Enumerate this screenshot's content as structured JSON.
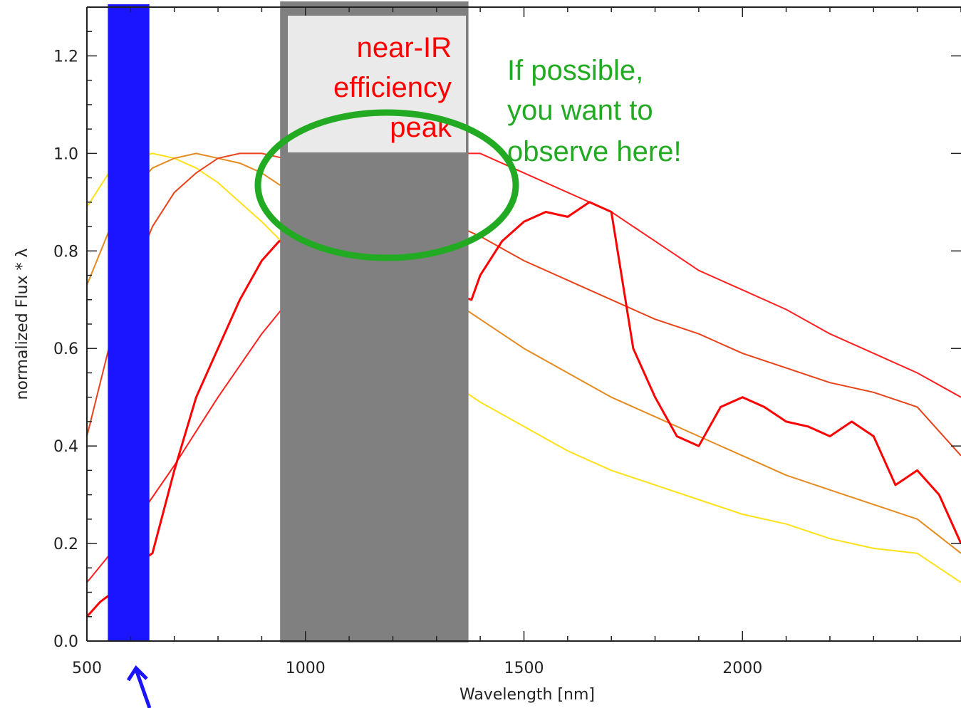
{
  "chart_data": {
    "type": "line",
    "title": "",
    "xlabel": "Wavelength [nm]",
    "ylabel": "normalized Flux * λ",
    "xlim": [
      500,
      2500
    ],
    "ylim": [
      0.0,
      1.3
    ],
    "x_ticks": [
      500,
      1000,
      1500,
      2000
    ],
    "x_tick_labels": [
      "500",
      "1000",
      "1500",
      "2000"
    ],
    "y_ticks": [
      0.0,
      0.2,
      0.4,
      0.6,
      0.8,
      1.0,
      1.2
    ],
    "y_tick_labels": [
      "0.0",
      "0.2",
      "0.4",
      "0.6",
      "0.8",
      "1.0",
      "1.2"
    ],
    "grid": false,
    "series": [
      {
        "color": "#ffe11a",
        "x": [
          500,
          550,
          600,
          650,
          700,
          750,
          800,
          900,
          1000,
          1100,
          1200,
          1300,
          1400,
          1500,
          1600,
          1700,
          1800,
          1900,
          2000,
          2100,
          2200,
          2300,
          2400,
          2500
        ],
        "values": [
          0.89,
          0.96,
          0.99,
          1.0,
          0.99,
          0.97,
          0.94,
          0.86,
          0.77,
          0.69,
          0.61,
          0.55,
          0.49,
          0.44,
          0.39,
          0.35,
          0.32,
          0.29,
          0.26,
          0.24,
          0.21,
          0.19,
          0.18,
          0.12
        ]
      },
      {
        "color": "#e58a1f",
        "x": [
          500,
          550,
          600,
          650,
          700,
          750,
          800,
          850,
          900,
          950,
          1000,
          1100,
          1200,
          1300,
          1400,
          1500,
          1600,
          1700,
          1800,
          1900,
          2000,
          2100,
          2200,
          2300,
          2400,
          2500
        ],
        "values": [
          0.73,
          0.84,
          0.92,
          0.97,
          0.99,
          1.0,
          0.99,
          0.98,
          0.96,
          0.93,
          0.9,
          0.84,
          0.78,
          0.72,
          0.66,
          0.6,
          0.55,
          0.5,
          0.46,
          0.42,
          0.38,
          0.34,
          0.31,
          0.28,
          0.25,
          0.18
        ]
      },
      {
        "color": "#e8421a",
        "x": [
          500,
          550,
          600,
          650,
          700,
          750,
          800,
          850,
          900,
          950,
          1000,
          1100,
          1200,
          1300,
          1400,
          1500,
          1600,
          1700,
          1800,
          1900,
          2000,
          2100,
          2200,
          2300,
          2400,
          2500
        ],
        "values": [
          0.42,
          0.6,
          0.74,
          0.85,
          0.92,
          0.96,
          0.99,
          1.0,
          1.0,
          0.99,
          0.98,
          0.95,
          0.91,
          0.87,
          0.83,
          0.78,
          0.74,
          0.7,
          0.66,
          0.63,
          0.59,
          0.56,
          0.53,
          0.51,
          0.48,
          0.38
        ]
      },
      {
        "color": "#ff2020",
        "x": [
          500,
          600,
          700,
          800,
          900,
          1000,
          1100,
          1200,
          1300,
          1400,
          1500,
          1600,
          1700,
          1800,
          1900,
          2000,
          2100,
          2200,
          2300,
          2400,
          2500
        ],
        "values": [
          0.12,
          0.23,
          0.36,
          0.5,
          0.63,
          0.74,
          0.84,
          0.93,
          1.0,
          1.0,
          0.96,
          0.92,
          0.88,
          0.82,
          0.76,
          0.72,
          0.68,
          0.63,
          0.59,
          0.55,
          0.5
        ]
      },
      {
        "color": "#ff0000",
        "x": [
          500,
          530,
          560,
          600,
          650,
          700,
          750,
          800,
          850,
          900,
          940,
          1380,
          1400,
          1450,
          1500,
          1550,
          1600,
          1650,
          1700,
          1750,
          1800,
          1850,
          1900,
          1950,
          2000,
          2050,
          2100,
          2150,
          2200,
          2250,
          2300,
          2350,
          2400,
          2450,
          2500
        ],
        "values": [
          0.05,
          0.08,
          0.1,
          0.15,
          0.18,
          0.35,
          0.5,
          0.6,
          0.7,
          0.78,
          0.82,
          0.7,
          0.75,
          0.82,
          0.86,
          0.88,
          0.87,
          0.9,
          0.88,
          0.6,
          0.5,
          0.42,
          0.4,
          0.48,
          0.5,
          0.48,
          0.45,
          0.44,
          0.42,
          0.45,
          0.42,
          0.32,
          0.35,
          0.3,
          0.2
        ]
      }
    ],
    "bands": [
      {
        "label": "blue band",
        "color": "#1a14ff",
        "x": [
          548,
          643
        ]
      },
      {
        "label": "near-IR gap",
        "color": "#808080",
        "x": [
          942,
          1373
        ]
      }
    ],
    "annotations": {
      "near_ir": [
        "near-IR",
        "efficiency",
        "peak"
      ],
      "observe": [
        "If possible,",
        "you want to",
        "observe here!"
      ]
    }
  },
  "colors": {
    "annotation_red": "#ff0000",
    "annotation_green": "#22aa22",
    "label_box": "#eaeaea",
    "arrow": "#1a14ff"
  }
}
